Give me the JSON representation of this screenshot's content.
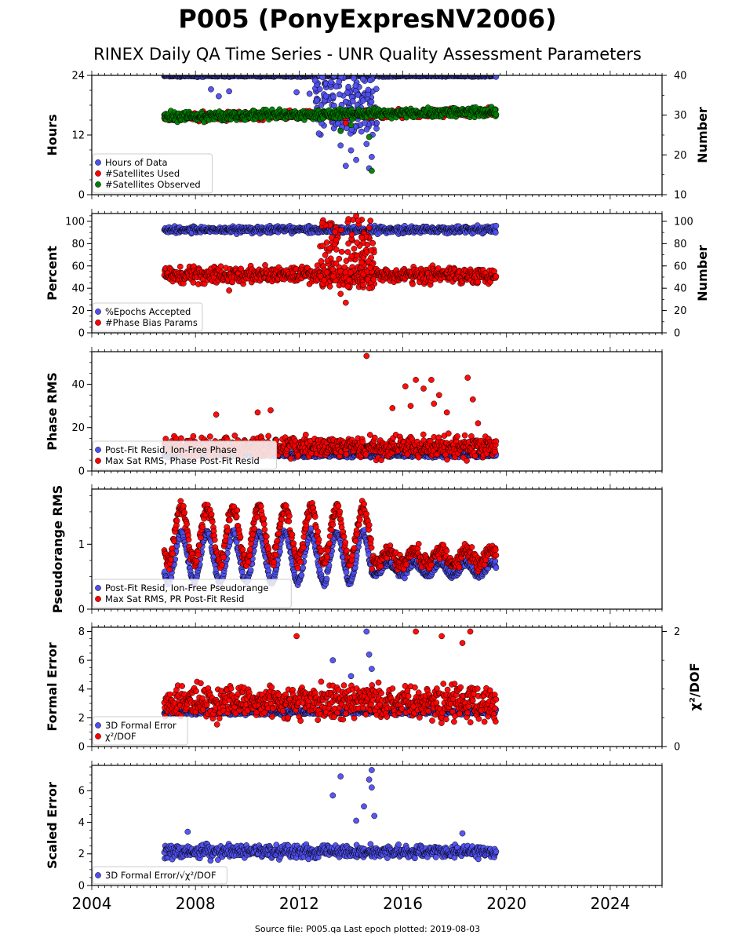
{
  "title": "P005 (PonyExpresNV2006)",
  "subtitle": "RINEX Daily QA Time Series - UNR Quality Assessment Parameters",
  "footer": "Source file: P005.qa Last epoch plotted: 2019-08-03",
  "colors": {
    "blue": "#4f4ff0",
    "red": "#ff0000",
    "green": "#008000",
    "edge": "#000000"
  },
  "chart_data": [
    {
      "type": "scatter",
      "ylabel": "Hours",
      "ylabel_right": "Number",
      "xlim": [
        2004,
        2026
      ],
      "ylim": [
        0,
        24
      ],
      "ylim_right": [
        10,
        40
      ],
      "yticks": [
        0,
        12,
        24
      ],
      "yticks_right": [
        10,
        20,
        30,
        40
      ],
      "legend_placement": "lower-left",
      "series": [
        {
          "name": "Hours of Data",
          "color": "blue",
          "axis": "left",
          "level": 23.9,
          "spread": 0.15,
          "outliers": [
            [
              2008.6,
              21.2
            ],
            [
              2008.9,
              19.8
            ],
            [
              2009.3,
              20.8
            ],
            [
              2011.9,
              20.6
            ],
            [
              2012.4,
              20.3
            ],
            [
              2013.5,
              14.3
            ],
            [
              2013.6,
              9.9
            ],
            [
              2013.8,
              5.8
            ],
            [
              2014.0,
              8.9
            ],
            [
              2014.2,
              7.0
            ],
            [
              2014.4,
              12.7
            ],
            [
              2014.6,
              10.2
            ],
            [
              2014.7,
              5.3
            ],
            [
              2014.8,
              7.6
            ]
          ],
          "burst": [
            2012.6,
            2015.0,
            12,
            24
          ]
        },
        {
          "name": "#Satellites Used",
          "color": "red",
          "axis": "right",
          "level": 29.5,
          "spread": 0.8,
          "outliers": [
            [
              2009.6,
              30.4
            ],
            [
              2013.8,
              28.0
            ]
          ]
        },
        {
          "name": "#Satellites Observed",
          "color": "green",
          "axis": "right",
          "level": 29.6,
          "spread": 1.0,
          "outliers": [
            [
              2013.6,
              26.0
            ],
            [
              2014.0,
              27.5
            ],
            [
              2014.7,
              24.5
            ],
            [
              2014.8,
              16.0
            ]
          ]
        }
      ]
    },
    {
      "type": "scatter",
      "ylabel": "Percent",
      "ylabel_right": "Number",
      "xlim": [
        2004,
        2026
      ],
      "ylim": [
        0,
        107
      ],
      "ylim_right": [
        0,
        107
      ],
      "yticks": [
        0,
        20,
        40,
        60,
        80,
        100
      ],
      "yticks_right": [
        0,
        20,
        40,
        60,
        80,
        100
      ],
      "legend_placement": "lower-left",
      "series": [
        {
          "name": "%Epochs Accepted",
          "color": "blue",
          "axis": "left",
          "level": 92.5,
          "spread": 2.5,
          "outliers": []
        },
        {
          "name": "#Phase Bias Params",
          "color": "red",
          "axis": "right",
          "level": 52,
          "spread": 6,
          "outliers": [
            [
              2009.3,
              38
            ],
            [
              2013.6,
              35
            ],
            [
              2013.8,
              27
            ],
            [
              2014.7,
              40
            ],
            [
              2014.2,
              105
            ],
            [
              2013.9,
              102
            ]
          ],
          "burst": [
            2012.8,
            2014.9,
            40,
            102
          ]
        }
      ]
    },
    {
      "type": "scatter",
      "ylabel": "Phase RMS",
      "xlim": [
        2004,
        2026
      ],
      "ylim": [
        0,
        55
      ],
      "yticks": [
        0,
        20,
        40
      ],
      "legend_placement": "lower-left",
      "series": [
        {
          "name": "Post-Fit Resid, Ion-Free Phase",
          "color": "blue",
          "axis": "left",
          "level": 7.5,
          "spread": 1.0,
          "outliers": []
        },
        {
          "name": "Max Sat RMS, Phase Post-Fit Resid",
          "color": "red",
          "axis": "left",
          "level": 11,
          "spread": 4,
          "outliers": [
            [
              2014.6,
              53
            ],
            [
              2016.5,
              42
            ],
            [
              2017.1,
              42
            ],
            [
              2018.5,
              43
            ],
            [
              2016.1,
              39
            ],
            [
              2016.8,
              38
            ],
            [
              2017.4,
              35
            ],
            [
              2017.2,
              31
            ],
            [
              2018.7,
              33
            ],
            [
              2016.3,
              30
            ],
            [
              2015.6,
              29
            ],
            [
              2017.7,
              27
            ],
            [
              2018.9,
              22
            ],
            [
              2008.8,
              26
            ],
            [
              2010.9,
              28
            ],
            [
              2010.4,
              27
            ]
          ]
        }
      ]
    },
    {
      "type": "scatter",
      "ylabel": "Pseudorange RMS",
      "xlim": [
        2004,
        2026
      ],
      "ylim": [
        0,
        1.85
      ],
      "yticks": [
        0,
        1
      ],
      "legend_placement": "lower-left",
      "series": [
        {
          "name": "Post-Fit Resid, Ion-Free Pseudorange",
          "color": "blue",
          "axis": "left",
          "seasonal": true,
          "level": 0.62,
          "spread": 0.05,
          "outliers": []
        },
        {
          "name": "Max Sat RMS, PR Post-Fit Resid",
          "color": "red",
          "axis": "left",
          "seasonal": true,
          "level": 0.8,
          "spread": 0.1,
          "outliers": []
        }
      ]
    },
    {
      "type": "scatter",
      "ylabel": "Formal Error",
      "ylabel_right": "χ²/DOF",
      "xlim": [
        2004,
        2026
      ],
      "ylim": [
        0,
        8.3
      ],
      "ylim_right": [
        0,
        2.075
      ],
      "yticks": [
        0,
        2,
        4,
        6,
        8
      ],
      "yticks_right": [
        0,
        2
      ],
      "legend_placement": "lower-left",
      "series": [
        {
          "name": "3D Formal Error",
          "color": "blue",
          "axis": "left",
          "level": 2.4,
          "spread": 0.15,
          "outliers": [
            [
              2013.3,
              6.0
            ],
            [
              2014.0,
              4.9
            ],
            [
              2014.6,
              8.0
            ],
            [
              2014.7,
              6.4
            ],
            [
              2014.8,
              5.4
            ]
          ]
        },
        {
          "name": "χ²/DOF",
          "color": "red",
          "axis": "right",
          "level": 0.78,
          "spread": 0.25,
          "outliers": [
            [
              2011.9,
              1.92
            ],
            [
              2016.5,
              2.0
            ],
            [
              2017.5,
              1.92
            ],
            [
              2018.6,
              2.0
            ],
            [
              2018.3,
              1.8
            ]
          ]
        }
      ]
    },
    {
      "type": "scatter",
      "ylabel": "Scaled Error",
      "xlim": [
        2004,
        2026
      ],
      "ylim": [
        0,
        7.6
      ],
      "yticks": [
        0,
        2,
        4,
        6
      ],
      "xticks": [
        2004,
        2008,
        2012,
        2016,
        2020,
        2024
      ],
      "legend_placement": "lower-left",
      "series": [
        {
          "name": "3D Formal Error/√χ²/DOF",
          "color": "blue",
          "axis": "left",
          "level": 2.15,
          "spread": 0.35,
          "outliers": [
            [
              2013.6,
              6.9
            ],
            [
              2013.3,
              5.7
            ],
            [
              2014.8,
              7.3
            ],
            [
              2014.7,
              6.7
            ],
            [
              2014.8,
              6.2
            ],
            [
              2014.2,
              4.1
            ],
            [
              2014.5,
              5.0
            ],
            [
              2014.9,
              4.4
            ],
            [
              2018.3,
              3.3
            ],
            [
              2007.7,
              3.4
            ]
          ]
        }
      ]
    }
  ]
}
